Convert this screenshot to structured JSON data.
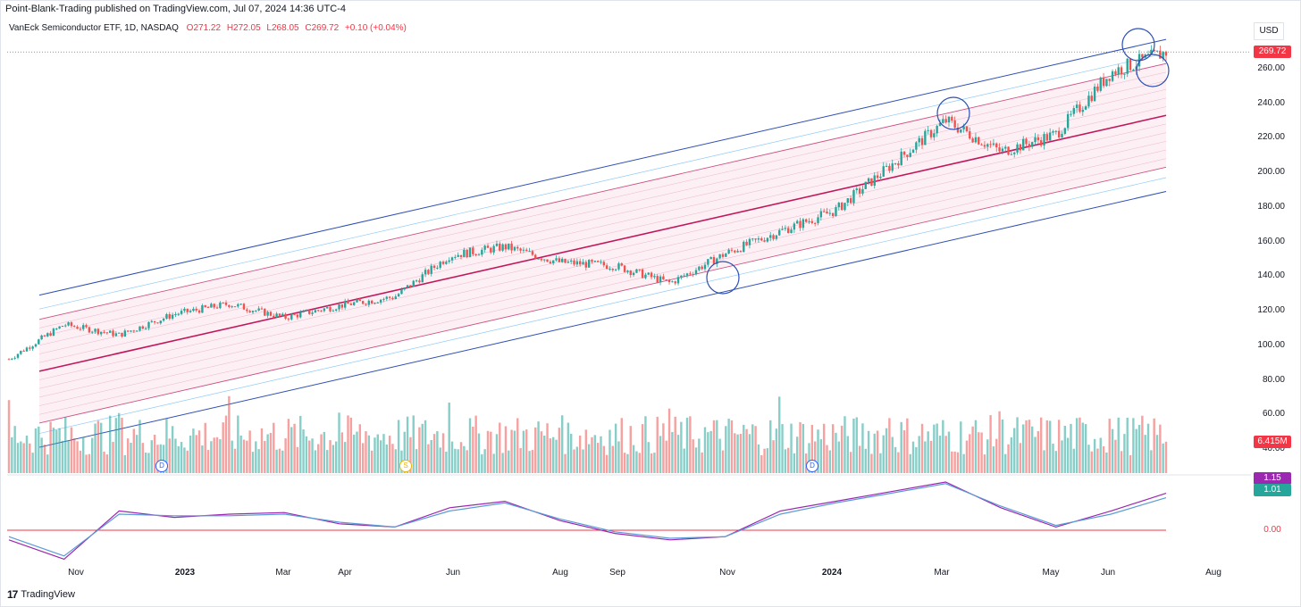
{
  "header": {
    "published": "Point-Blank-Trading published on TradingView.com, Jul 07, 2024 14:36 UTC-4"
  },
  "legend": {
    "symbol": "VanEck Semiconductor ETF, 1D, NASDAQ",
    "open": "O271.22",
    "high": "H272.05",
    "low": "L268.05",
    "close": "C269.72",
    "change": "+0.10 (+0.04%)"
  },
  "currency": "USD",
  "price_axis": [
    "260.00",
    "240.00",
    "220.00",
    "200.00",
    "180.00",
    "160.00",
    "140.00",
    "120.00",
    "100.00",
    "80.00",
    "60.00",
    "40.00"
  ],
  "tags": {
    "last_price": "269.72",
    "volume": "6.415M",
    "osc_a": "1.15",
    "osc_b": "1.01",
    "osc_zero": "0.00"
  },
  "colors": {
    "up": "#26a69a",
    "down": "#ef5350",
    "channel_outer": "#2e4fb3",
    "channel_inner": "#c2185b",
    "osc_a": "#9c27b0",
    "osc_b": "#5b9bd5",
    "zero": "#f23645"
  },
  "date_axis": [
    {
      "label": "Nov",
      "bold": false
    },
    {
      "label": "2023",
      "bold": true
    },
    {
      "label": "Mar",
      "bold": false
    },
    {
      "label": "Apr",
      "bold": false
    },
    {
      "label": "Jun",
      "bold": false
    },
    {
      "label": "Aug",
      "bold": false
    },
    {
      "label": "Sep",
      "bold": false
    },
    {
      "label": "Nov",
      "bold": false
    },
    {
      "label": "2024",
      "bold": true
    },
    {
      "label": "Mar",
      "bold": false
    },
    {
      "label": "May",
      "bold": false
    },
    {
      "label": "Jun",
      "bold": false
    },
    {
      "label": "Aug",
      "bold": false
    }
  ],
  "events": [
    {
      "label": "D",
      "type": "d"
    },
    {
      "label": "S",
      "type": "s"
    },
    {
      "label": "D",
      "type": "d"
    }
  ],
  "footer": {
    "brand": "TradingView"
  },
  "chart_data": {
    "type": "line",
    "title": "VanEck Semiconductor ETF, 1D, NASDAQ",
    "xlabel": "",
    "ylabel": "USD",
    "ylim": [
      40,
      280
    ],
    "x": [
      "2022-10",
      "2022-11",
      "2022-12",
      "2023-01",
      "2023-02",
      "2023-03",
      "2023-04",
      "2023-05",
      "2023-06",
      "2023-07",
      "2023-08",
      "2023-09",
      "2023-10",
      "2023-11",
      "2023-12",
      "2024-01",
      "2024-02",
      "2024-03",
      "2024-04",
      "2024-05",
      "2024-06",
      "2024-07"
    ],
    "series": [
      {
        "name": "VanEck Semiconductor ETF",
        "values": [
          92,
          112,
          106,
          118,
          124,
          116,
          123,
          128,
          152,
          157,
          148,
          146,
          136,
          153,
          166,
          178,
          204,
          230,
          212,
          222,
          258,
          269.72
        ]
      }
    ],
    "channel": {
      "mid_start": 85,
      "mid_end": 233,
      "outer_upper_start": 129,
      "outer_upper_end": 277,
      "outer_lower_start": 41,
      "outer_lower_end": 189
    },
    "oscillator": {
      "series": [
        {
          "name": "1.15",
          "values": [
            -0.3,
            -0.9,
            0.6,
            0.4,
            0.5,
            0.55,
            0.2,
            0.1,
            0.7,
            0.9,
            0.3,
            -0.1,
            -0.3,
            -0.2,
            0.6,
            0.9,
            1.2,
            1.5,
            0.7,
            0.1,
            0.6,
            1.15
          ]
        },
        {
          "name": "1.01",
          "values": [
            -0.2,
            -0.8,
            0.5,
            0.45,
            0.45,
            0.5,
            0.25,
            0.1,
            0.6,
            0.85,
            0.35,
            -0.05,
            -0.25,
            -0.2,
            0.5,
            0.85,
            1.15,
            1.45,
            0.75,
            0.15,
            0.5,
            1.01
          ]
        }
      ]
    }
  }
}
